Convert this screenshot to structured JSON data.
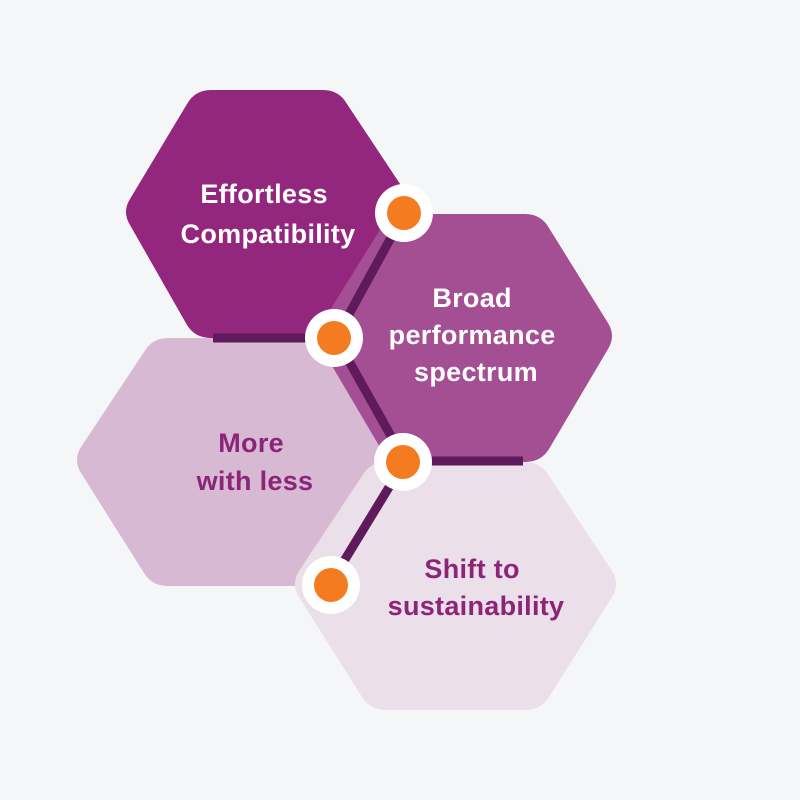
{
  "diagram": {
    "background_color": "#f5f6f8",
    "connector_color": "#5e1a5a",
    "node_fill_color": "#f47b20",
    "node_ring_color": "#ffffff",
    "hexagons": [
      {
        "line1": "Effortless",
        "line2": "Compatibility",
        "line3": "",
        "fill": "#93267d",
        "text_color": "#ffffff"
      },
      {
        "line1": "Broad",
        "line2": "performance",
        "line3": "spectrum",
        "fill": "#a44e93",
        "text_color": "#ffffff"
      },
      {
        "line1": "More",
        "line2": "with less",
        "line3": "",
        "fill": "#d7b9d3",
        "text_color": "#8c2577"
      },
      {
        "line1": "Shift to",
        "line2": "sustainability",
        "line3": "",
        "fill": "#ebdfea",
        "text_color": "#8c2577"
      }
    ]
  }
}
